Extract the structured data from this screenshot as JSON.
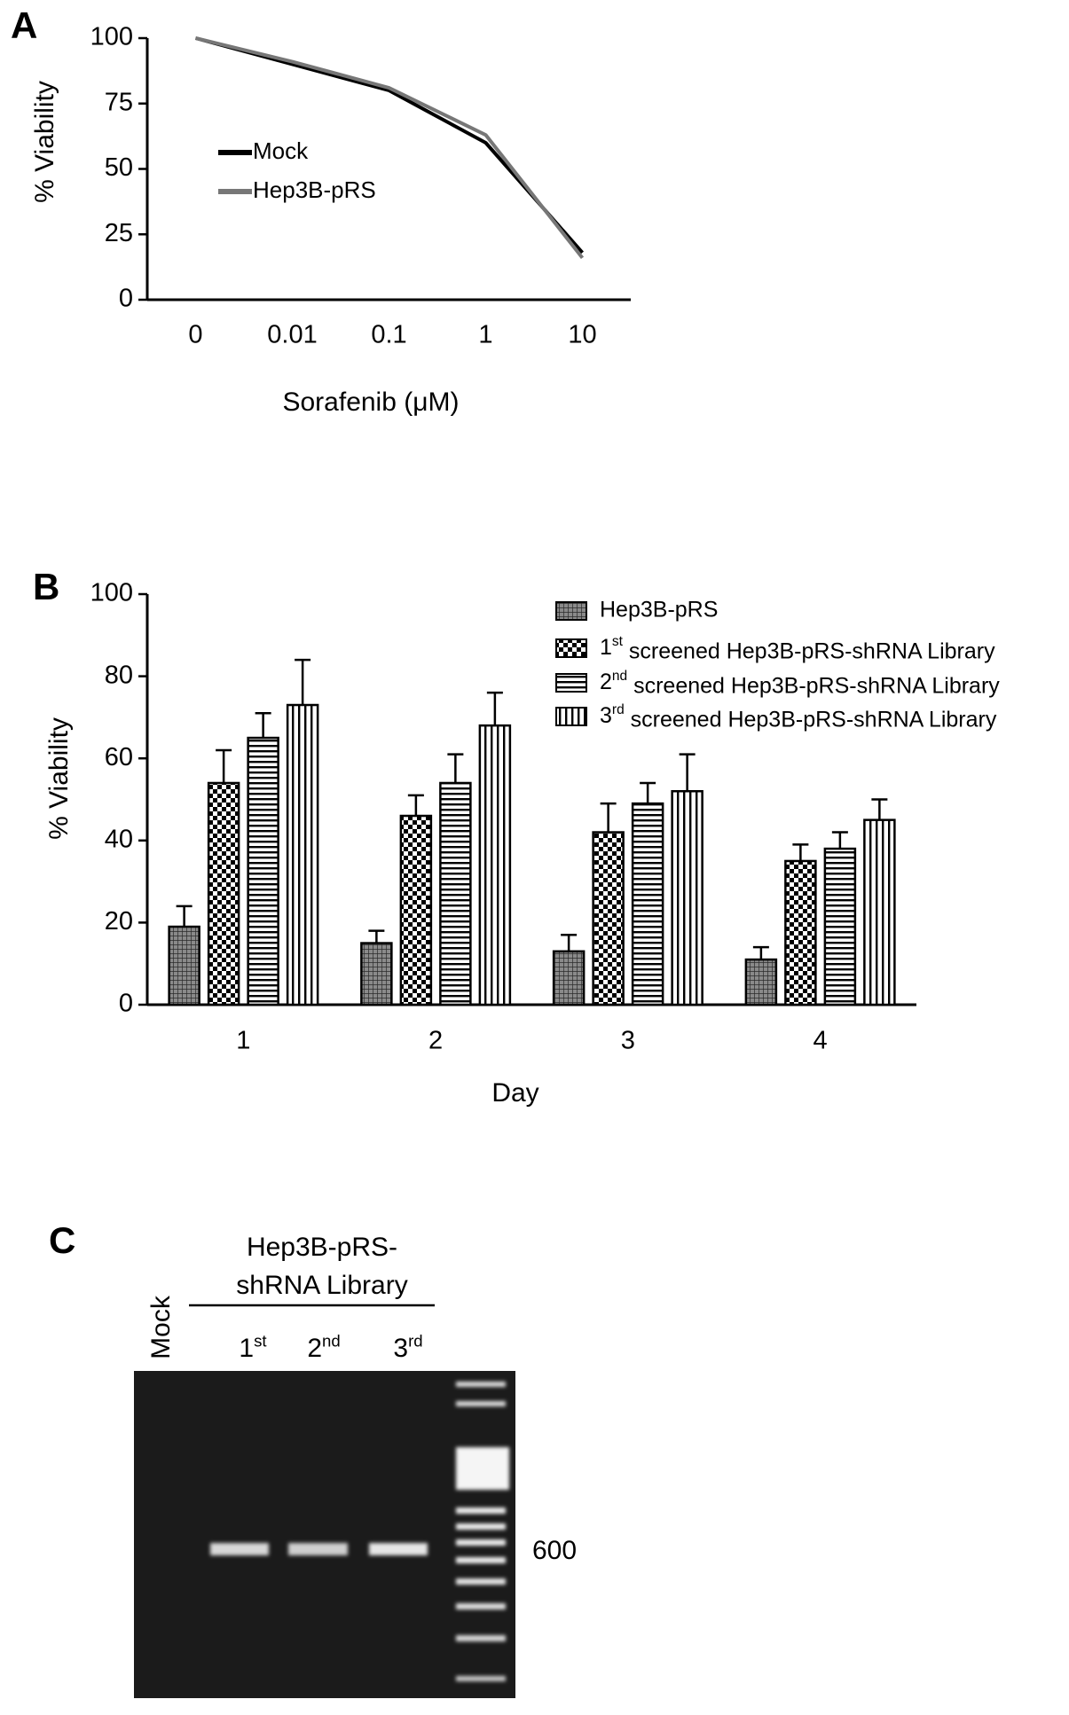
{
  "chart_data": [
    {
      "type": "line",
      "panel": "A",
      "categories": [
        "0",
        "0.01",
        "0.1",
        "1",
        "10"
      ],
      "x_label": "Sorafenib (μM)",
      "y_label": "% Viability",
      "series": [
        {
          "name": "Mock",
          "color": "#000000",
          "values": [
            100,
            90,
            80,
            60,
            18
          ]
        },
        {
          "name": "Hep3B-pRS",
          "color": "#777777",
          "values": [
            100,
            91,
            81,
            63,
            16
          ]
        }
      ],
      "ylim": [
        0,
        100
      ],
      "yticks": [
        0,
        25,
        50,
        75,
        100
      ]
    },
    {
      "type": "bar",
      "panel": "B",
      "categories": [
        "1",
        "2",
        "3",
        "4"
      ],
      "x_label": "Day",
      "y_label": "% Viability",
      "series": [
        {
          "name": "Hep3B-pRS",
          "pattern": "crosshatch",
          "values": [
            19,
            15,
            13,
            11
          ],
          "errors": [
            5,
            3,
            4,
            3
          ]
        },
        {
          "name": "1st screened Hep3B-pRS-shRNA Library",
          "pattern": "checker",
          "values": [
            54,
            46,
            42,
            35
          ],
          "errors": [
            8,
            5,
            7,
            4
          ]
        },
        {
          "name": "2nd screened Hep3B-pRS-shRNA Library",
          "pattern": "hstripe",
          "values": [
            65,
            54,
            49,
            38
          ],
          "errors": [
            6,
            7,
            5,
            4
          ]
        },
        {
          "name": "3rd screened Hep3B-pRS-shRNA Library",
          "pattern": "vstripe",
          "values": [
            73,
            68,
            52,
            45
          ],
          "errors": [
            11,
            8,
            9,
            5
          ]
        }
      ],
      "ylim": [
        0,
        100
      ],
      "yticks": [
        0,
        20,
        40,
        60,
        80,
        100
      ]
    }
  ],
  "gel": {
    "panel": "C",
    "title_lines": [
      "Hep3B-pRS-",
      "shRNA Library"
    ],
    "control_lane": "Mock",
    "lanes": [
      "1st",
      "2nd",
      "3rd"
    ],
    "marker": "600"
  }
}
